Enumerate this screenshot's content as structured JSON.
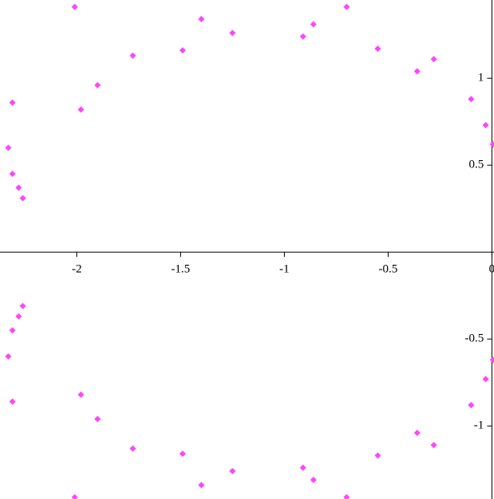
{
  "chart_data": {
    "type": "scatter",
    "color": "#ff44ff",
    "x": [
      -2.01,
      -1.4,
      -1.25,
      -0.7,
      -0.86,
      -0.91,
      -0.55,
      -0.28,
      -0.36,
      -0.1,
      -0.03,
      0.005,
      -1.73,
      -1.49,
      -1.9,
      -1.98,
      -2.31,
      -2.33,
      -2.31,
      -2.28,
      -2.26,
      -2.01,
      -1.4,
      -1.25,
      -0.7,
      -0.86,
      -0.91,
      -0.55,
      -0.28,
      -0.36,
      -0.1,
      -0.03,
      0.005,
      -1.73,
      -1.49,
      -1.9,
      -1.98,
      -2.31,
      -2.33,
      -2.31,
      -2.28,
      -2.26
    ],
    "values": [
      1.41,
      1.34,
      1.26,
      1.41,
      1.31,
      1.24,
      1.17,
      1.11,
      1.04,
      0.88,
      0.73,
      0.62,
      1.13,
      1.16,
      0.96,
      0.82,
      0.86,
      0.6,
      0.45,
      0.37,
      0.31,
      -1.41,
      -1.34,
      -1.26,
      -1.41,
      -1.31,
      -1.24,
      -1.17,
      -1.11,
      -1.04,
      -0.88,
      -0.73,
      -0.62,
      -1.13,
      -1.16,
      -0.96,
      -0.82,
      -0.86,
      -0.6,
      -0.45,
      -0.37,
      -0.31
    ],
    "xlim": [
      -2.37,
      0.01
    ],
    "ylim": [
      -1.42,
      1.45
    ],
    "xticks": [
      -2,
      -1.5,
      -1,
      -0.5,
      0
    ],
    "yticks": [
      -1,
      -0.5,
      0.5,
      1
    ]
  }
}
